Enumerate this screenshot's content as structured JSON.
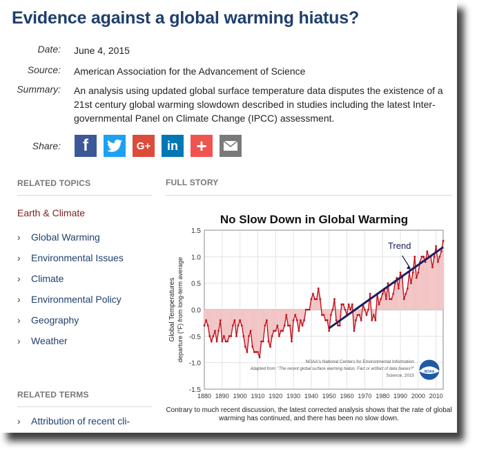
{
  "article": {
    "title": "Evidence against a global warming hiatus?",
    "date_label": "Date:",
    "date": "June 4, 2015",
    "source_label": "Source:",
    "source": "American Association for the Advancement of Science",
    "summary_label": "Summary:",
    "summary": "An analysis using updated global surface temperature data disputes the existence of a 21st century global warming slowdown described in studies including the latest Inter-governmental Panel on Climate Change (IPCC) assessment.",
    "share_label": "Share:"
  },
  "share_buttons": [
    {
      "name": "facebook",
      "glyph": "f",
      "color": "#3b5998"
    },
    {
      "name": "twitter",
      "glyph": "t",
      "color": "#1da1f2"
    },
    {
      "name": "google-plus",
      "glyph": "G+",
      "color": "#dd4b39"
    },
    {
      "name": "linkedin",
      "glyph": "in",
      "color": "#0077b5"
    },
    {
      "name": "add",
      "glyph": "+",
      "color": "#f0544f"
    },
    {
      "name": "email",
      "glyph": "",
      "color": "#7a7a7a"
    }
  ],
  "related_topics": {
    "heading": "RELATED TOPICS",
    "category": "Earth & Climate",
    "items": [
      "Global Warming",
      "Environmental Issues",
      "Climate",
      "Environmental Policy",
      "Geography",
      "Weather"
    ]
  },
  "related_terms": {
    "heading": "RELATED TERMS",
    "items": [
      "Attribution of recent cli-"
    ]
  },
  "full_story": {
    "heading": "FULL STORY"
  },
  "chart_data": {
    "type": "area",
    "title": "No Slow Down in Global Warming",
    "ylabel": "Global Temperatures",
    "ylabel2": "departure (°F) from long-term average",
    "xlim": [
      1880,
      2014
    ],
    "ylim": [
      -1.5,
      1.5
    ],
    "xticks": [
      1880,
      1890,
      1900,
      1910,
      1920,
      1930,
      1940,
      1950,
      1960,
      1970,
      1980,
      1990,
      2000,
      2010
    ],
    "yticks": [
      -1.5,
      -1.0,
      -0.5,
      0.0,
      0.5,
      1.0,
      1.5
    ],
    "ytick_labels": [
      "-1.5",
      "-1.0",
      "-0.5",
      "0.0",
      "0.5",
      "1.0",
      "1.5"
    ],
    "grid": true,
    "series": [
      {
        "name": "",
        "x": [
          1880,
          1881,
          1882,
          1883,
          1884,
          1885,
          1886,
          1887,
          1888,
          1889,
          1890,
          1891,
          1892,
          1893,
          1894,
          1895,
          1896,
          1897,
          1898,
          1899,
          1900,
          1901,
          1902,
          1903,
          1904,
          1905,
          1906,
          1907,
          1908,
          1909,
          1910,
          1911,
          1912,
          1913,
          1914,
          1915,
          1916,
          1917,
          1918,
          1919,
          1920,
          1921,
          1922,
          1923,
          1924,
          1925,
          1926,
          1927,
          1928,
          1929,
          1930,
          1931,
          1932,
          1933,
          1934,
          1935,
          1936,
          1937,
          1938,
          1939,
          1940,
          1941,
          1942,
          1943,
          1944,
          1945,
          1946,
          1947,
          1948,
          1949,
          1950,
          1951,
          1952,
          1953,
          1954,
          1955,
          1956,
          1957,
          1958,
          1959,
          1960,
          1961,
          1962,
          1963,
          1964,
          1965,
          1966,
          1967,
          1968,
          1969,
          1970,
          1971,
          1972,
          1973,
          1974,
          1975,
          1976,
          1977,
          1978,
          1979,
          1980,
          1981,
          1982,
          1983,
          1984,
          1985,
          1986,
          1987,
          1988,
          1989,
          1990,
          1991,
          1992,
          1993,
          1994,
          1995,
          1996,
          1997,
          1998,
          1999,
          2000,
          2001,
          2002,
          2003,
          2004,
          2005,
          2006,
          2007,
          2008,
          2009,
          2010,
          2011,
          2012,
          2013,
          2014
        ],
        "values": [
          -0.3,
          -0.2,
          -0.3,
          -0.5,
          -0.6,
          -0.5,
          -0.4,
          -0.6,
          -0.4,
          -0.2,
          -0.6,
          -0.5,
          -0.6,
          -0.6,
          -0.5,
          -0.5,
          -0.3,
          -0.2,
          -0.5,
          -0.3,
          -0.2,
          -0.3,
          -0.5,
          -0.7,
          -0.8,
          -0.5,
          -0.4,
          -0.7,
          -0.8,
          -0.8,
          -0.8,
          -0.9,
          -0.6,
          -0.6,
          -0.3,
          -0.2,
          -0.6,
          -0.7,
          -0.5,
          -0.4,
          -0.4,
          -0.3,
          -0.5,
          -0.4,
          -0.4,
          -0.3,
          -0.1,
          -0.3,
          -0.3,
          -0.6,
          -0.2,
          -0.1,
          -0.2,
          -0.4,
          -0.2,
          -0.3,
          -0.2,
          0.0,
          0.0,
          0.0,
          0.2,
          0.3,
          0.2,
          0.2,
          0.4,
          0.2,
          -0.1,
          -0.1,
          -0.2,
          -0.2,
          -0.4,
          -0.1,
          0.0,
          0.2,
          -0.2,
          -0.3,
          -0.3,
          0.1,
          0.1,
          0.0,
          -0.1,
          0.1,
          0.0,
          0.1,
          -0.4,
          -0.2,
          -0.1,
          -0.1,
          -0.2,
          0.1,
          0.0,
          -0.1,
          0.0,
          0.3,
          -0.2,
          -0.1,
          -0.2,
          0.3,
          0.1,
          0.2,
          0.3,
          0.4,
          0.2,
          0.5,
          0.2,
          0.2,
          0.3,
          0.5,
          0.6,
          0.4,
          0.7,
          0.6,
          0.2,
          0.3,
          0.4,
          0.7,
          0.5,
          0.7,
          1.0,
          0.6,
          0.7,
          0.9,
          1.0,
          1.0,
          0.9,
          1.1,
          1.0,
          1.0,
          0.8,
          1.0,
          1.2,
          0.9,
          1.0,
          1.1,
          1.3
        ]
      }
    ],
    "trend": {
      "label": "Trend",
      "x": [
        1950,
        2014
      ],
      "y": [
        -0.35,
        1.18
      ]
    },
    "credit": [
      "NOAA's National Centers for Environmental Information",
      "Adapted from: \"The recent global surface warming hiatus: Fact or artifact of data biases?\"",
      "Science, 2015"
    ],
    "logo": "NOAA",
    "caption": "Contrary to much recent discussion, the latest corrected analysis shows that the rate of global warming has continued, and there has been no slow down."
  }
}
